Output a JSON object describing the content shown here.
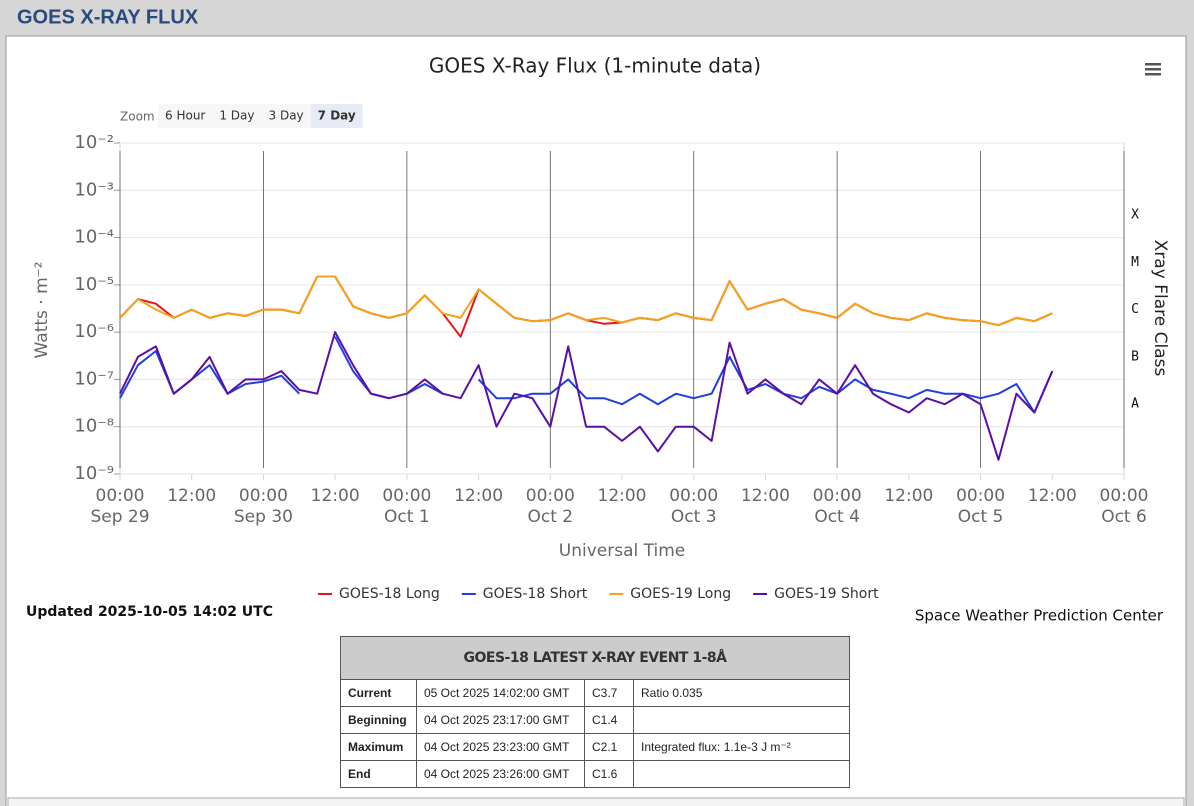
{
  "header": {
    "title": "GOES X-RAY FLUX"
  },
  "chart_data": {
    "type": "line",
    "title": "GOES X-Ray Flux (1-minute data)",
    "zoom": {
      "label": "Zoom",
      "buttons": [
        "6 Hour",
        "1 Day",
        "3 Day",
        "7 Day"
      ],
      "selected": 3
    },
    "xlabel": "Universal Time",
    "ylabel": "Watts · m⁻²",
    "y2label": "Xray Flare Class",
    "log_scale": true,
    "grid": true,
    "ylim": [
      1e-09,
      0.01
    ],
    "yticks": [
      {
        "value": 0.01,
        "label": "10⁻²"
      },
      {
        "value": 0.001,
        "label": "10⁻³"
      },
      {
        "value": 0.0001,
        "label": "10⁻⁴"
      },
      {
        "value": 1e-05,
        "label": "10⁻⁵"
      },
      {
        "value": 1e-06,
        "label": "10⁻⁶"
      },
      {
        "value": 1e-07,
        "label": "10⁻⁷"
      },
      {
        "value": 1e-08,
        "label": "10⁻⁸"
      },
      {
        "value": 1e-09,
        "label": "10⁻⁹"
      }
    ],
    "y2lim": [
      1e-09,
      0.01
    ],
    "y2ticks": [
      {
        "value": 0.0003,
        "label": "X"
      },
      {
        "value": 3e-05,
        "label": "M"
      },
      {
        "value": 3e-06,
        "label": "C"
      },
      {
        "value": 3e-07,
        "label": "B"
      },
      {
        "value": 3e-08,
        "label": "A"
      }
    ],
    "xlim": [
      "Sep 29 00:00",
      "Oct 6 00:00"
    ],
    "xticks": [
      {
        "value": "Sep 29 00:00",
        "label": [
          "00:00",
          "Sep 29"
        ]
      },
      {
        "value": "Sep 29 12:00",
        "label": "12:00"
      },
      {
        "value": "Sep 30 00:00",
        "label": [
          "00:00",
          "Sep 30"
        ]
      },
      {
        "value": "Sep 30 12:00",
        "label": "12:00"
      },
      {
        "value": "Oct 1 00:00",
        "label": [
          "00:00",
          "Oct 1"
        ]
      },
      {
        "value": "Oct 1 12:00",
        "label": "12:00"
      },
      {
        "value": "Oct 2 00:00",
        "label": [
          "00:00",
          "Oct 2"
        ]
      },
      {
        "value": "Oct 2 12:00",
        "label": "12:00"
      },
      {
        "value": "Oct 3 00:00",
        "label": [
          "00:00",
          "Oct 3"
        ]
      },
      {
        "value": "Oct 3 12:00",
        "label": "12:00"
      },
      {
        "value": "Oct 4 00:00",
        "label": [
          "00:00",
          "Oct 4"
        ]
      },
      {
        "value": "Oct 4 12:00",
        "label": "12:00"
      },
      {
        "value": "Oct 5 00:00",
        "label": [
          "00:00",
          "Oct 5"
        ]
      },
      {
        "value": "Oct 5 12:00",
        "label": "12:00"
      },
      {
        "value": "Oct 6 00:00",
        "label": [
          "00:00",
          "Oct 6"
        ]
      }
    ],
    "x": [
      "Sep 29 00:00",
      "Sep 29 03:00",
      "Sep 29 06:00",
      "Sep 29 09:00",
      "Sep 29 12:00",
      "Sep 29 15:00",
      "Sep 29 18:00",
      "Sep 29 21:00",
      "Sep 30 00:00",
      "Sep 30 03:00",
      "Sep 30 06:00",
      "Sep 30 09:00",
      "Sep 30 12:00",
      "Sep 30 15:00",
      "Sep 30 18:00",
      "Sep 30 21:00",
      "Oct 1 00:00",
      "Oct 1 03:00",
      "Oct 1 06:00",
      "Oct 1 09:00",
      "Oct 1 12:00",
      "Oct 1 15:00",
      "Oct 1 18:00",
      "Oct 1 21:00",
      "Oct 2 00:00",
      "Oct 2 03:00",
      "Oct 2 06:00",
      "Oct 2 09:00",
      "Oct 2 12:00",
      "Oct 2 15:00",
      "Oct 2 18:00",
      "Oct 2 21:00",
      "Oct 3 00:00",
      "Oct 3 03:00",
      "Oct 3 06:00",
      "Oct 3 09:00",
      "Oct 3 12:00",
      "Oct 3 15:00",
      "Oct 3 18:00",
      "Oct 3 21:00",
      "Oct 4 00:00",
      "Oct 4 03:00",
      "Oct 4 06:00",
      "Oct 4 09:00",
      "Oct 4 12:00",
      "Oct 4 15:00",
      "Oct 4 18:00",
      "Oct 4 21:00",
      "Oct 5 00:00",
      "Oct 5 03:00",
      "Oct 5 06:00",
      "Oct 5 09:00",
      "Oct 5 12:00"
    ],
    "series": [
      {
        "name": "GOES-18 Long",
        "color": "#e8141a",
        "values": [
          2e-06,
          5e-06,
          4e-06,
          2e-06,
          3e-06,
          2e-06,
          2.5e-06,
          2.2e-06,
          3e-06,
          3e-06,
          2.5e-06,
          1.5e-05,
          1.5e-05,
          3.5e-06,
          2.5e-06,
          2e-06,
          2.5e-06,
          6e-06,
          2.5e-06,
          8e-07,
          8e-06,
          4e-06,
          2e-06,
          1.7e-06,
          1.8e-06,
          2.5e-06,
          1.8e-06,
          1.5e-06,
          1.6e-06,
          2e-06,
          1.8e-06,
          2.5e-06,
          2e-06,
          1.8e-06,
          1.2e-05,
          3e-06,
          4e-06,
          5e-06,
          3e-06,
          2.5e-06,
          2e-06,
          4e-06,
          2.5e-06,
          2e-06,
          1.8e-06,
          2.5e-06,
          2e-06,
          1.8e-06,
          1.7e-06,
          1.4e-06,
          2e-06,
          1.7e-06,
          2.5e-06
        ]
      },
      {
        "name": "GOES-18 Short",
        "color": "#1f3fe0",
        "values": [
          4e-08,
          2e-07,
          4e-07,
          5e-08,
          1e-07,
          2e-07,
          5e-08,
          8e-08,
          9e-08,
          1.2e-07,
          5e-08,
          null,
          8e-07,
          1.5e-07,
          5e-08,
          4e-08,
          5e-08,
          8e-08,
          5e-08,
          null,
          1e-07,
          4e-08,
          4e-08,
          5e-08,
          5e-08,
          1e-07,
          4e-08,
          4e-08,
          3e-08,
          5e-08,
          3e-08,
          5e-08,
          4e-08,
          5e-08,
          3e-07,
          6e-08,
          8e-08,
          5e-08,
          4e-08,
          7e-08,
          5e-08,
          1e-07,
          6e-08,
          5e-08,
          4e-08,
          6e-08,
          5e-08,
          5e-08,
          4e-08,
          5e-08,
          8e-08,
          2e-08,
          1.5e-07
        ]
      },
      {
        "name": "GOES-19 Long",
        "color": "#f5a21b",
        "values": [
          2e-06,
          5e-06,
          3e-06,
          2e-06,
          3e-06,
          2e-06,
          2.5e-06,
          2.2e-06,
          3e-06,
          3e-06,
          2.5e-06,
          1.5e-05,
          1.5e-05,
          3.5e-06,
          2.5e-06,
          2e-06,
          2.5e-06,
          6e-06,
          2.5e-06,
          2e-06,
          8e-06,
          4e-06,
          2e-06,
          1.7e-06,
          1.8e-06,
          2.5e-06,
          1.8e-06,
          2e-06,
          1.6e-06,
          2e-06,
          1.8e-06,
          2.5e-06,
          2e-06,
          1.8e-06,
          1.2e-05,
          3e-06,
          4e-06,
          5e-06,
          3e-06,
          2.5e-06,
          2e-06,
          4e-06,
          2.5e-06,
          2e-06,
          1.8e-06,
          2.5e-06,
          2e-06,
          1.8e-06,
          1.7e-06,
          1.4e-06,
          2e-06,
          1.7e-06,
          2.5e-06
        ]
      },
      {
        "name": "GOES-19 Short",
        "color": "#5a0fa8",
        "values": [
          5e-08,
          3e-07,
          5e-07,
          5e-08,
          1e-07,
          3e-07,
          5e-08,
          1e-07,
          1e-07,
          1.5e-07,
          6e-08,
          5e-08,
          1e-06,
          2e-07,
          5e-08,
          4e-08,
          5e-08,
          1e-07,
          5e-08,
          4e-08,
          2e-07,
          1e-08,
          5e-08,
          4e-08,
          1e-08,
          5e-07,
          1e-08,
          1e-08,
          5e-09,
          1e-08,
          3e-09,
          1e-08,
          1e-08,
          5e-09,
          6e-07,
          5e-08,
          1e-07,
          5e-08,
          3e-08,
          1e-07,
          5e-08,
          2e-07,
          5e-08,
          3e-08,
          2e-08,
          4e-08,
          3e-08,
          5e-08,
          3e-08,
          2e-09,
          5e-08,
          2e-08,
          1.5e-07
        ]
      }
    ],
    "updated": "Updated 2025-10-05 14:02 UTC",
    "credit": "Space Weather Prediction Center"
  },
  "table": {
    "title": "GOES-18 LATEST X-RAY EVENT 1-8Å",
    "rows": [
      [
        "Current",
        "05 Oct 2025 14:02:00 GMT",
        "C3.7",
        "Ratio 0.035"
      ],
      [
        "Beginning",
        "04 Oct 2025 23:17:00 GMT",
        "C1.4"
      ],
      [
        "Maximum",
        "04 Oct 2025 23:23:00 GMT",
        "C2.1",
        "Integrated flux: 1.1e-3 J m⁻²"
      ],
      [
        "End",
        "04 Oct 2025 23:26:00 GMT",
        "C1.6"
      ]
    ]
  }
}
